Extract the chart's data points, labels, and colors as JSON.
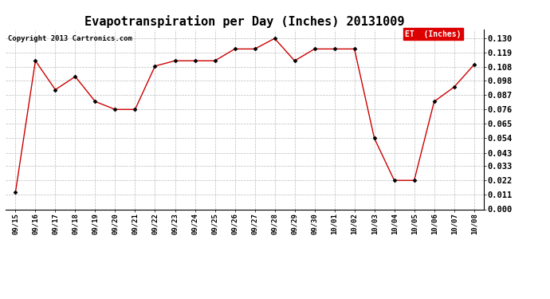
{
  "title": "Evapotranspiration per Day (Inches) 20131009",
  "copyright": "Copyright 2013 Cartronics.com",
  "legend_label": "ET  (Inches)",
  "x_labels": [
    "09/15",
    "09/16",
    "09/17",
    "09/18",
    "09/19",
    "09/20",
    "09/21",
    "09/22",
    "09/23",
    "09/24",
    "09/25",
    "09/26",
    "09/27",
    "09/28",
    "09/29",
    "09/30",
    "10/01",
    "10/02",
    "10/03",
    "10/04",
    "10/05",
    "10/06",
    "10/07",
    "10/08"
  ],
  "y_values": [
    0.013,
    0.113,
    0.091,
    0.101,
    0.082,
    0.076,
    0.076,
    0.109,
    0.113,
    0.113,
    0.113,
    0.122,
    0.122,
    0.13,
    0.113,
    0.122,
    0.122,
    0.122,
    0.054,
    0.022,
    0.022,
    0.082,
    0.093,
    0.11
  ],
  "line_color": "#cc0000",
  "marker": "D",
  "marker_size": 2.5,
  "marker_color": "black",
  "ylim": [
    0.0,
    0.1365
  ],
  "yticks": [
    0.0,
    0.011,
    0.022,
    0.033,
    0.043,
    0.054,
    0.065,
    0.076,
    0.087,
    0.098,
    0.108,
    0.119,
    0.13
  ],
  "background_color": "#ffffff",
  "grid_color": "#bbbbbb",
  "title_fontsize": 11,
  "copyright_fontsize": 6.5,
  "tick_fontsize": 6.5,
  "ytick_fontsize": 7.5,
  "legend_bg": "#dd0000",
  "legend_text_color": "#ffffff",
  "legend_fontsize": 7
}
